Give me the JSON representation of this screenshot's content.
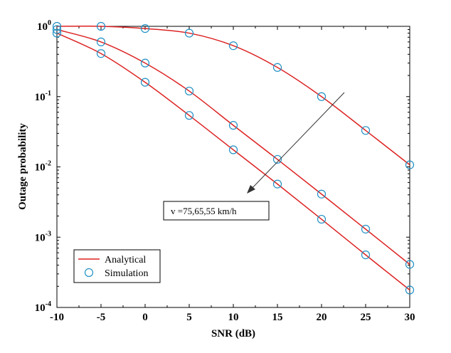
{
  "chart_data": {
    "type": "line",
    "xlabel": "SNR (dB)",
    "ylabel": "Outage probability",
    "xlim": [
      -10,
      30
    ],
    "ylim": [
      0.0001,
      1
    ],
    "yscale": "log",
    "x_ticks": [
      "-10",
      "-5",
      "0",
      "5",
      "10",
      "15",
      "20",
      "25",
      "30"
    ],
    "y_ticks": [
      {
        "base": "10",
        "exp": "0"
      },
      {
        "base": "10",
        "exp": "-1"
      },
      {
        "base": "10",
        "exp": "-2"
      },
      {
        "base": "10",
        "exp": "-3"
      },
      {
        "base": "10",
        "exp": "-4"
      }
    ],
    "grid": false,
    "legend_position": "bottom-left",
    "colors": {
      "analytical": "#dd2222",
      "simulation": "#1f8fc4"
    },
    "legend": {
      "analytical_label": "Analytical",
      "simulation_label": "Simulation"
    },
    "annotation": "v =75,65,55 km/h",
    "x": [
      -10,
      -5,
      0,
      5,
      10,
      15,
      20,
      25,
      30
    ],
    "series": [
      {
        "values": [
          1.0,
          1.0,
          0.93,
          0.8,
          0.53,
          0.26,
          0.1,
          0.033,
          0.0107
        ]
      },
      {
        "values": [
          0.9,
          0.6,
          0.3,
          0.12,
          0.039,
          0.0128,
          0.0041,
          0.0013,
          0.00041
        ]
      },
      {
        "values": [
          0.8,
          0.41,
          0.16,
          0.054,
          0.0175,
          0.0057,
          0.0018,
          0.00056,
          0.000177
        ]
      }
    ]
  }
}
